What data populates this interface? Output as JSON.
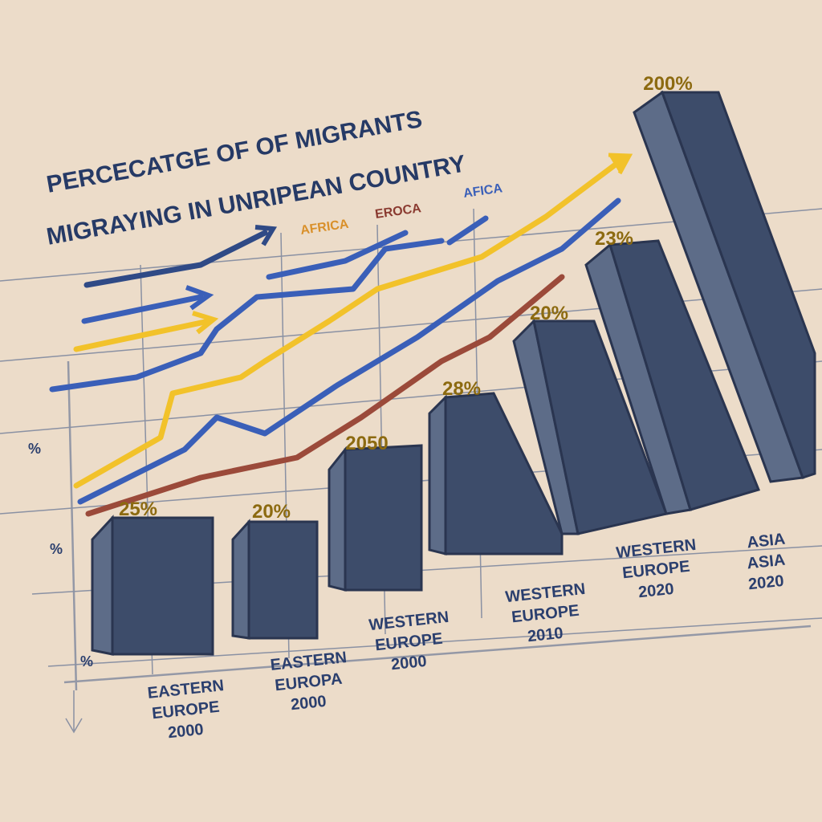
{
  "title": [
    "PERCECATGE OF  OF MIGRANTS",
    "MIGRAYING IN UNRIPEAN COUNTRY"
  ],
  "line_labels": [
    "AFRICA",
    "EROCA",
    "AFICA"
  ],
  "bar_labels": [
    "25%",
    "20%",
    "2050",
    "28%",
    "20%",
    "23%",
    "200%"
  ],
  "axis_marks": [
    "%",
    "%",
    "%"
  ],
  "categories": [
    [
      "EASTERN",
      "EUROPE",
      "2000"
    ],
    [
      "EASTERN",
      "EUROPA",
      "2000"
    ],
    [
      "WESTERN",
      "EUROPE",
      "2000"
    ],
    [
      "WESTERN",
      "EUROPE",
      "2010"
    ],
    [
      "WESTERN",
      "EUROPE",
      "2020"
    ],
    [
      "ASIA",
      "ASIA",
      "2020"
    ]
  ]
}
